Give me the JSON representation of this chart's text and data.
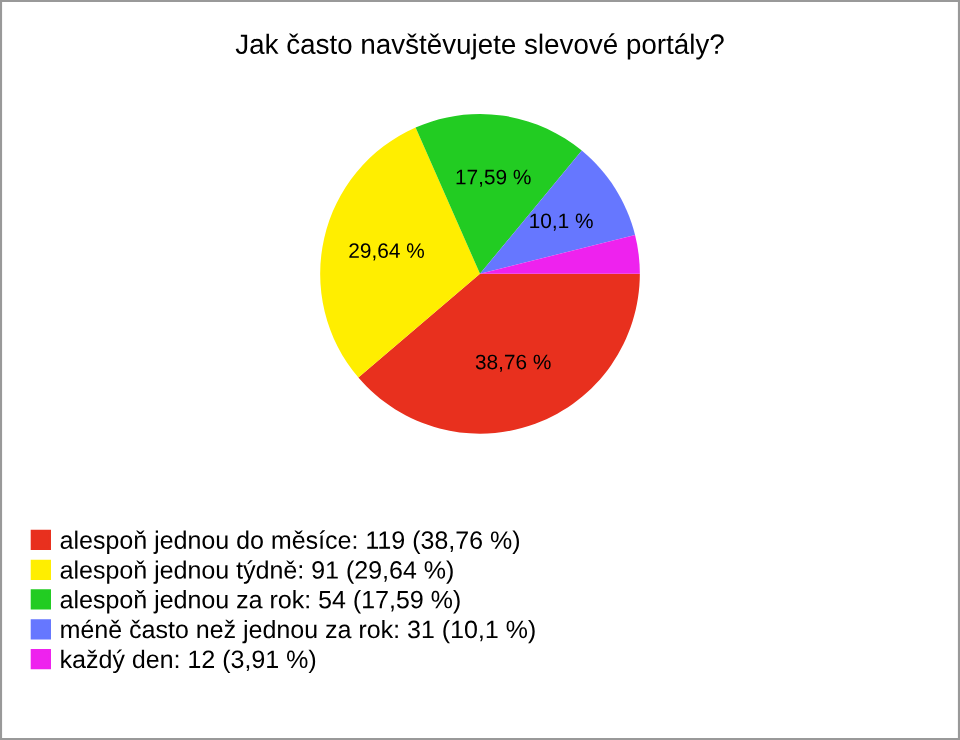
{
  "chart_data": {
    "type": "pie",
    "title": "Jak často navštěvujete slevové portály?",
    "categories": [
      "alespoň jednou do měsíce: 119 (38,76 %)",
      "alespoň jednou týdně: 91 (29,64 %)",
      "alespoň jednou za rok: 54 (17,59 %)",
      "méně často než jednou za rok: 31 (10,1 %)",
      "každý den: 12 (3,91 %)"
    ],
    "values": [
      38.76,
      29.64,
      17.59,
      10.1,
      3.91
    ],
    "value_labels": [
      "38,76 %",
      "29,64 %",
      "17,59 %",
      "10,1 %",
      null
    ],
    "colors": [
      "#e8301e",
      "#ffee00",
      "#22cc22",
      "#6677ff",
      "#ee22ee"
    ],
    "legend": "bottom"
  }
}
